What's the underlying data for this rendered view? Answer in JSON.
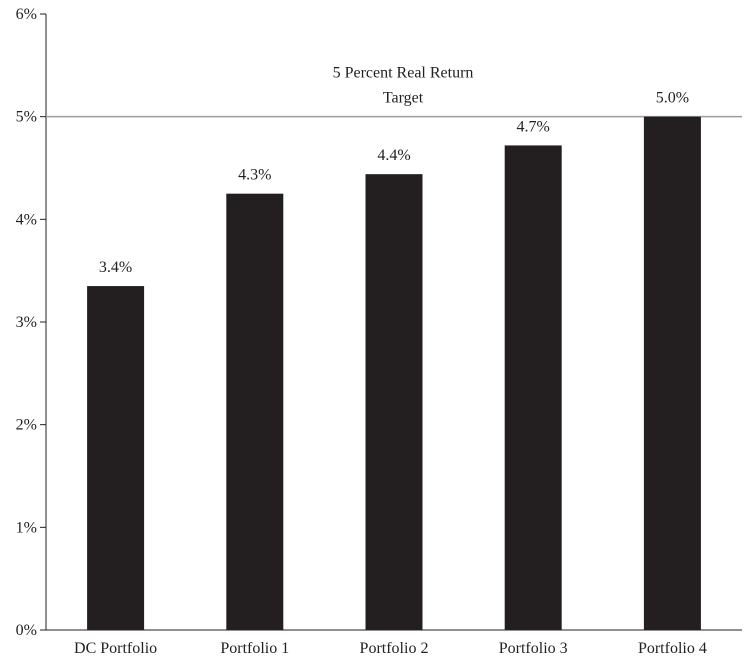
{
  "chart_data": {
    "type": "bar",
    "categories": [
      "DC Portfolio",
      "Portfolio 1",
      "Portfolio 2",
      "Portfolio 3",
      "Portfolio 4"
    ],
    "values": [
      3.35,
      4.25,
      4.44,
      4.72,
      5.0
    ],
    "data_labels": [
      "3.4%",
      "4.3%",
      "4.4%",
      "4.7%",
      "5.0%"
    ],
    "ylim": [
      0,
      6
    ],
    "yticks": [
      0,
      1,
      2,
      3,
      4,
      5,
      6
    ],
    "ytick_labels": [
      "0%",
      "1%",
      "2%",
      "3%",
      "4%",
      "5%",
      "6%"
    ],
    "target": {
      "value": 5,
      "label_line1": "5 Percent Real Return",
      "label_line2": "Target"
    },
    "bar_color": "#231f20",
    "target_line_color": "#9d9d9d",
    "grid": false,
    "legend": "none"
  }
}
